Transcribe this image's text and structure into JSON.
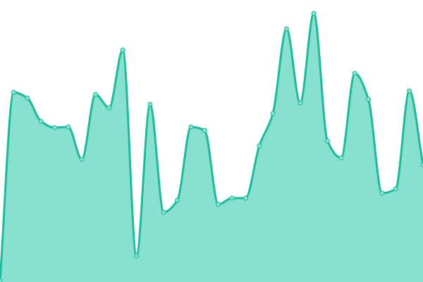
{
  "chart_data": {
    "type": "area",
    "title": "",
    "xlabel": "",
    "ylabel": "",
    "x": [
      0,
      1,
      2,
      3,
      4,
      5,
      6,
      7,
      8,
      9,
      10,
      11,
      12,
      13,
      14,
      15,
      16,
      17,
      18,
      19,
      20,
      21,
      22,
      23,
      24,
      25,
      26,
      27,
      28,
      29,
      30,
      31
    ],
    "values": [
      2,
      269,
      261,
      228,
      219,
      220,
      174,
      266,
      247,
      329,
      37,
      252,
      99,
      116,
      220,
      215,
      110,
      119,
      119,
      193,
      239,
      359,
      254,
      381,
      200,
      176,
      296,
      259,
      126,
      132,
      271,
      166
    ],
    "ylim": [
      0,
      400
    ],
    "grid": false,
    "axes_visible": false,
    "curve": "smooth",
    "markers": true,
    "colors": {
      "line": "#1abc9c",
      "fill": "#88e0cf",
      "marker_fill": "#88e0cf"
    }
  }
}
